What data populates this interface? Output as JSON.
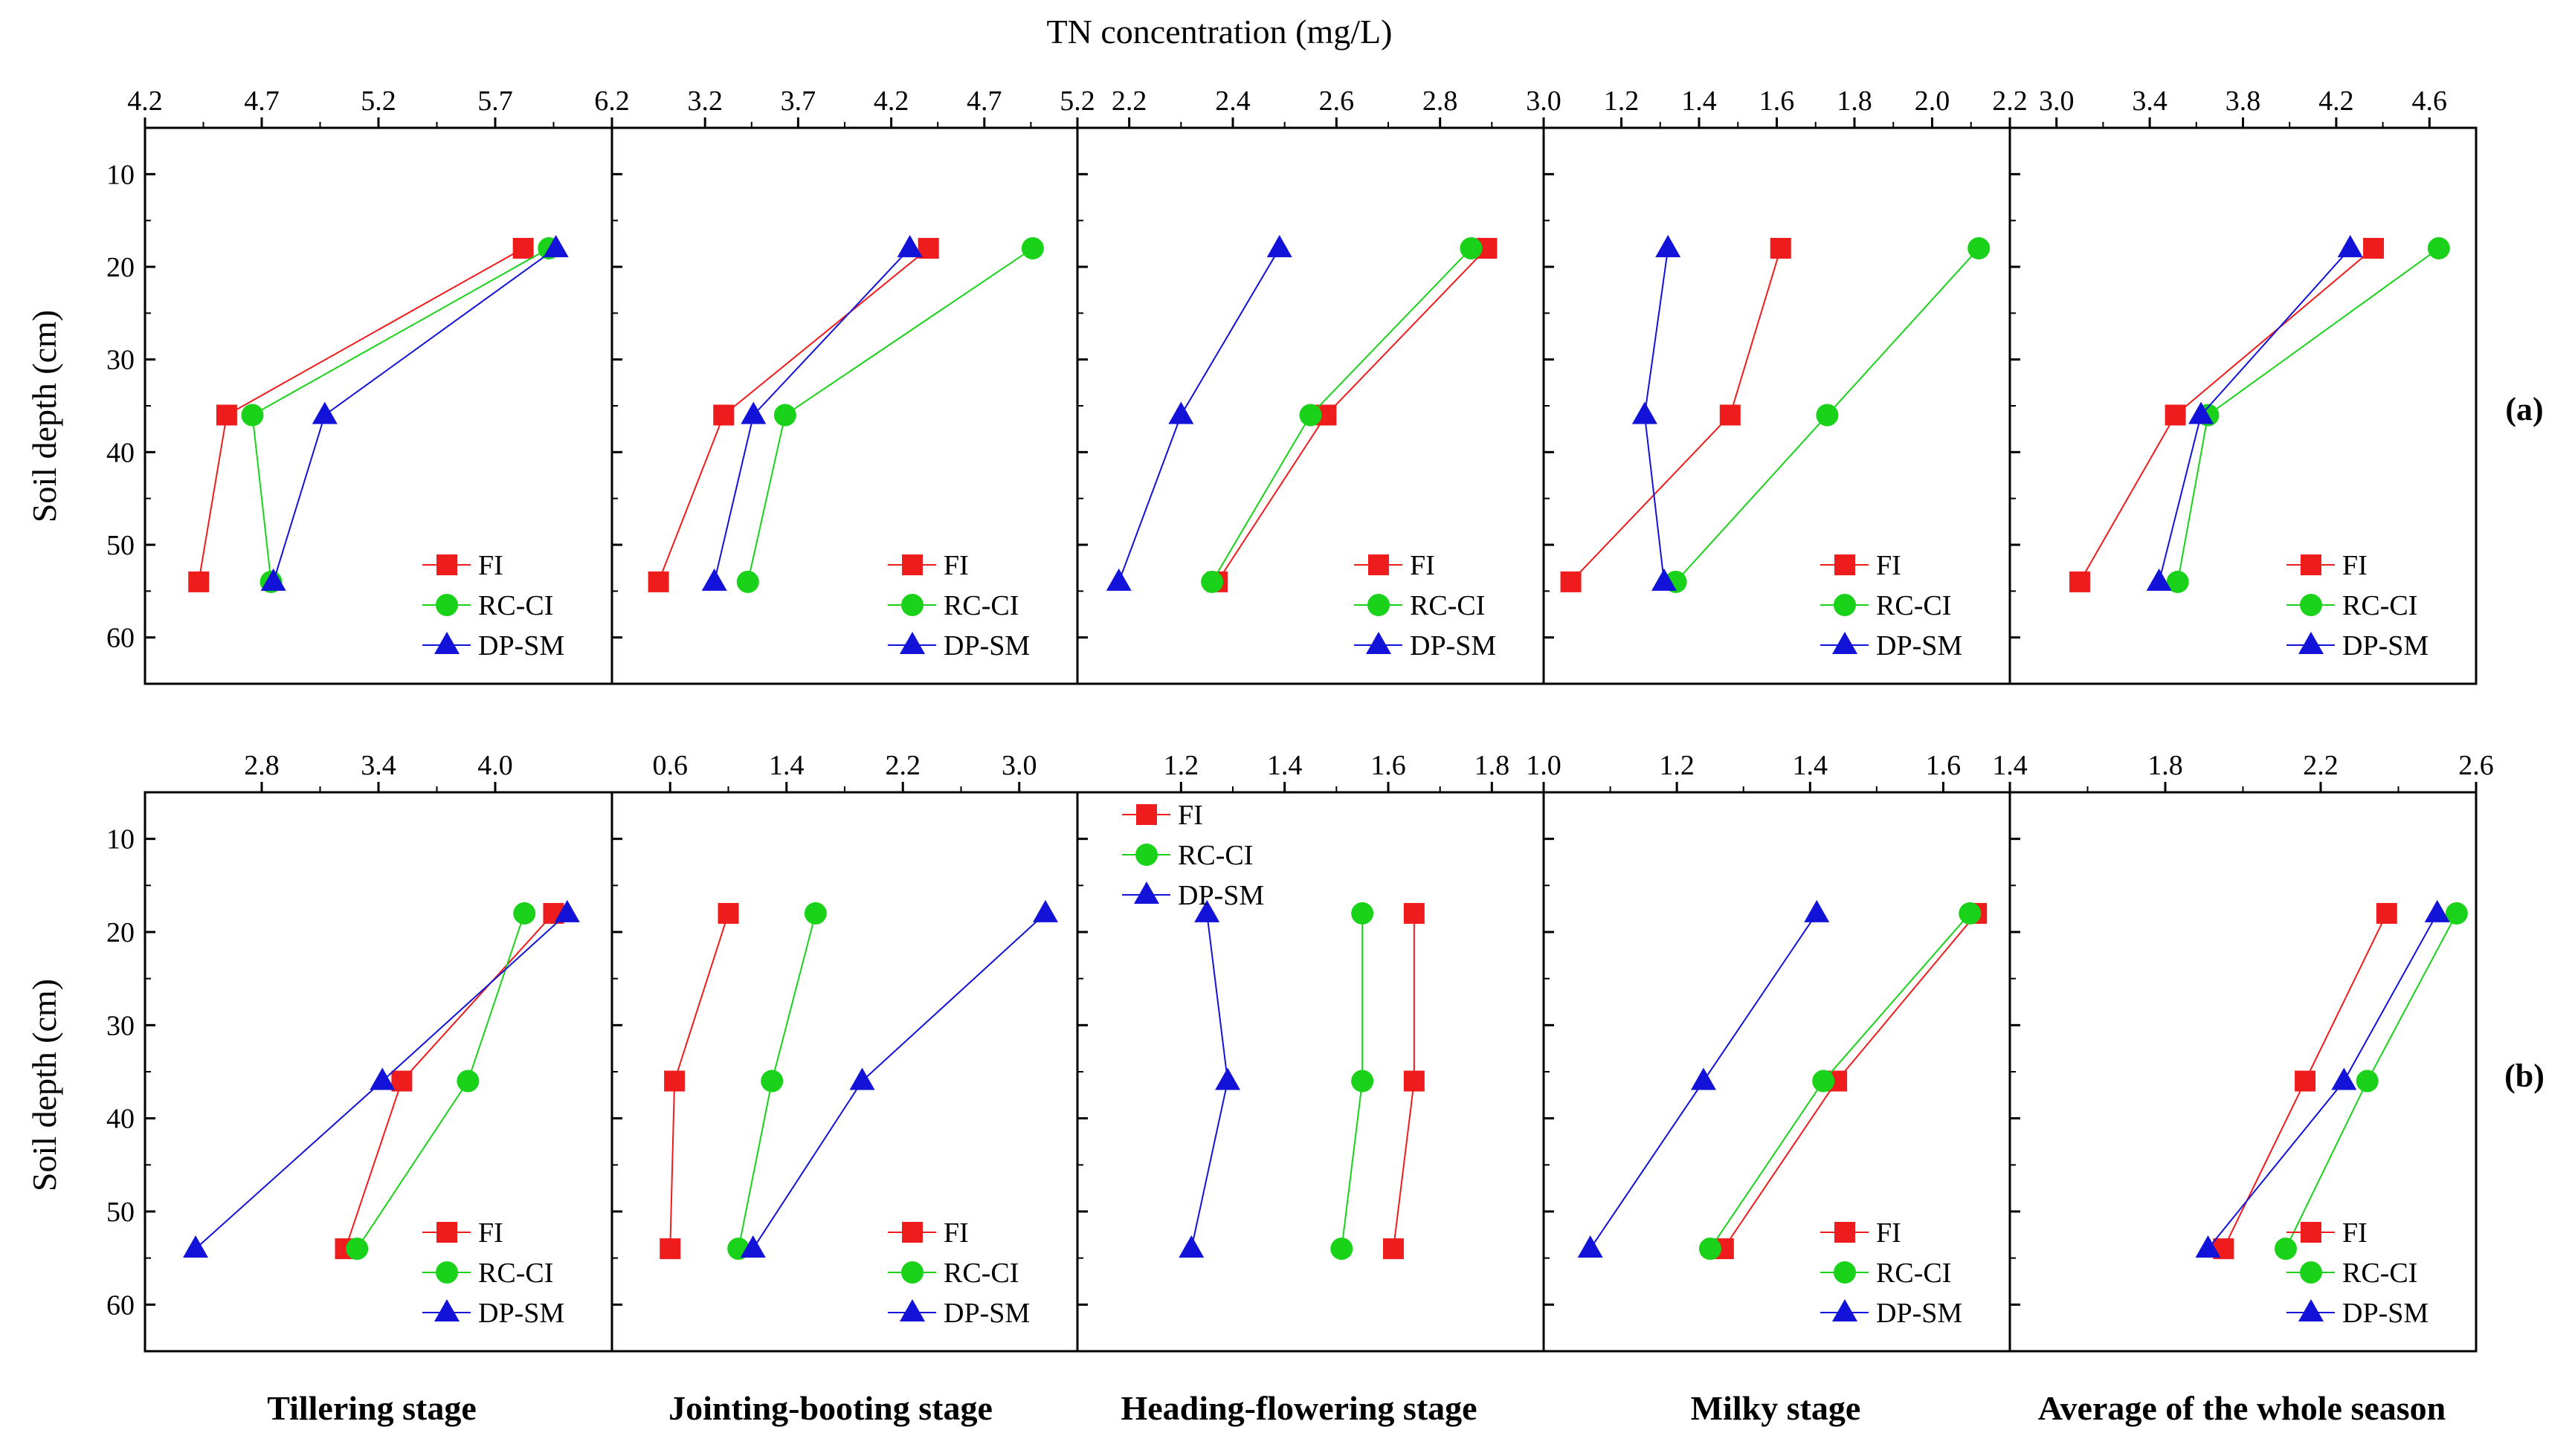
{
  "figure": {
    "top_xlabel": "TN concentration (mg/L)",
    "ylabel": "Soil depth (cm)",
    "row_labels": [
      "(a)",
      "(b)"
    ],
    "stage_labels": [
      "Tillering stage",
      "Jointing-booting stage",
      "Heading-flowering stage",
      "Milky stage",
      "Average of the whole season"
    ],
    "colors": {
      "FI": "#ee1c1c",
      "RC-CI": "#1ad21a",
      "DP-SM": "#1212d8"
    }
  },
  "chart_data": [
    {
      "type": "line",
      "row": "(a)",
      "panel": "Tillering stage",
      "xlim": [
        4.2,
        6.2
      ],
      "xticks": [
        "4.2",
        "4.7",
        "5.2",
        "5.7",
        "6.2"
      ],
      "ylim": [
        5,
        65
      ],
      "yticks": [
        "10",
        "20",
        "30",
        "40",
        "50",
        "60"
      ],
      "depths": [
        18,
        36,
        54
      ],
      "legend": "bottom-right",
      "series": [
        {
          "name": "FI",
          "marker": "square",
          "values": [
            5.82,
            4.55,
            4.43
          ]
        },
        {
          "name": "RC-CI",
          "marker": "circle",
          "values": [
            5.93,
            4.66,
            4.74
          ]
        },
        {
          "name": "DP-SM",
          "marker": "triangle",
          "values": [
            5.96,
            4.97,
            4.75
          ]
        }
      ]
    },
    {
      "type": "line",
      "row": "(a)",
      "panel": "Jointing-booting stage",
      "xlim": [
        2.7,
        5.2
      ],
      "xticks": [
        "3.2",
        "3.7",
        "4.2",
        "4.7",
        "5.2"
      ],
      "ylim": [
        5,
        65
      ],
      "yticks": [
        "10",
        "20",
        "30",
        "40",
        "50",
        "60"
      ],
      "depths": [
        18,
        36,
        54
      ],
      "legend": "bottom-right",
      "series": [
        {
          "name": "FI",
          "marker": "square",
          "values": [
            4.4,
            3.3,
            2.95
          ]
        },
        {
          "name": "RC-CI",
          "marker": "circle",
          "values": [
            4.96,
            3.63,
            3.43
          ]
        },
        {
          "name": "DP-SM",
          "marker": "triangle",
          "values": [
            4.3,
            3.46,
            3.25
          ]
        }
      ]
    },
    {
      "type": "line",
      "row": "(a)",
      "panel": "Heading-flowering stage",
      "xlim": [
        2.1,
        3.0
      ],
      "xticks": [
        "2.2",
        "2.4",
        "2.6",
        "2.8",
        "3.0"
      ],
      "ylim": [
        5,
        65
      ],
      "yticks": [
        "10",
        "20",
        "30",
        "40",
        "50",
        "60"
      ],
      "depths": [
        18,
        36,
        54
      ],
      "legend": "bottom-right",
      "series": [
        {
          "name": "FI",
          "marker": "square",
          "values": [
            2.89,
            2.58,
            2.37
          ]
        },
        {
          "name": "RC-CI",
          "marker": "circle",
          "values": [
            2.86,
            2.55,
            2.36
          ]
        },
        {
          "name": "DP-SM",
          "marker": "triangle",
          "values": [
            2.49,
            2.3,
            2.18
          ]
        }
      ]
    },
    {
      "type": "line",
      "row": "(a)",
      "panel": "Milky stage",
      "xlim": [
        1.0,
        2.2
      ],
      "xticks": [
        "1.2",
        "1.4",
        "1.6",
        "1.8",
        "2.0",
        "2.2"
      ],
      "ylim": [
        5,
        65
      ],
      "yticks": [
        "10",
        "20",
        "30",
        "40",
        "50",
        "60"
      ],
      "depths": [
        18,
        36,
        54
      ],
      "legend": "bottom-right",
      "series": [
        {
          "name": "FI",
          "marker": "square",
          "values": [
            1.61,
            1.48,
            1.07
          ]
        },
        {
          "name": "RC-CI",
          "marker": "circle",
          "values": [
            2.12,
            1.73,
            1.34
          ]
        },
        {
          "name": "DP-SM",
          "marker": "triangle",
          "values": [
            1.32,
            1.26,
            1.31
          ]
        }
      ]
    },
    {
      "type": "line",
      "row": "(a)",
      "panel": "Average of the whole season",
      "xlim": [
        2.8,
        4.8
      ],
      "xticks": [
        "3.0",
        "3.4",
        "3.8",
        "4.2",
        "4.6"
      ],
      "ylim": [
        5,
        65
      ],
      "yticks": [
        "10",
        "20",
        "30",
        "40",
        "50",
        "60"
      ],
      "depths": [
        18,
        36,
        54
      ],
      "legend": "bottom-right",
      "series": [
        {
          "name": "FI",
          "marker": "square",
          "values": [
            4.36,
            3.51,
            3.1
          ]
        },
        {
          "name": "RC-CI",
          "marker": "circle",
          "values": [
            4.64,
            3.65,
            3.52
          ]
        },
        {
          "name": "DP-SM",
          "marker": "triangle",
          "values": [
            4.26,
            3.62,
            3.44
          ]
        }
      ]
    },
    {
      "type": "line",
      "row": "(b)",
      "panel": "Tillering stage",
      "xlim": [
        2.2,
        4.6
      ],
      "xticks": [
        "2.8",
        "3.4",
        "4.0"
      ],
      "ylim": [
        5,
        65
      ],
      "yticks": [
        "10",
        "20",
        "30",
        "40",
        "50",
        "60"
      ],
      "depths": [
        18,
        36,
        54
      ],
      "legend": "bottom-right",
      "series": [
        {
          "name": "FI",
          "marker": "square",
          "values": [
            4.3,
            3.52,
            3.23
          ]
        },
        {
          "name": "RC-CI",
          "marker": "circle",
          "values": [
            4.15,
            3.86,
            3.29
          ]
        },
        {
          "name": "DP-SM",
          "marker": "triangle",
          "values": [
            4.37,
            3.42,
            2.46
          ]
        }
      ]
    },
    {
      "type": "line",
      "row": "(b)",
      "panel": "Jointing-booting stage",
      "xlim": [
        0.2,
        3.4
      ],
      "xticks": [
        "0.6",
        "1.4",
        "2.2",
        "3.0"
      ],
      "ylim": [
        5,
        65
      ],
      "yticks": [
        "10",
        "20",
        "30",
        "40",
        "50",
        "60"
      ],
      "depths": [
        18,
        36,
        54
      ],
      "legend": "bottom-right",
      "series": [
        {
          "name": "FI",
          "marker": "square",
          "values": [
            1.0,
            0.63,
            0.6
          ]
        },
        {
          "name": "RC-CI",
          "marker": "circle",
          "values": [
            1.6,
            1.3,
            1.07
          ]
        },
        {
          "name": "DP-SM",
          "marker": "triangle",
          "values": [
            3.18,
            1.92,
            1.17
          ]
        }
      ]
    },
    {
      "type": "line",
      "row": "(b)",
      "panel": "Heading-flowering stage",
      "xlim": [
        1.0,
        1.9
      ],
      "xticks": [
        "1.2",
        "1.4",
        "1.6",
        "1.8"
      ],
      "ylim": [
        5,
        65
      ],
      "yticks": [
        "10",
        "20",
        "30",
        "40",
        "50",
        "60"
      ],
      "depths": [
        18,
        36,
        54
      ],
      "legend": "top-left",
      "series": [
        {
          "name": "FI",
          "marker": "square",
          "values": [
            1.65,
            1.65,
            1.61
          ]
        },
        {
          "name": "RC-CI",
          "marker": "circle",
          "values": [
            1.55,
            1.55,
            1.51
          ]
        },
        {
          "name": "DP-SM",
          "marker": "triangle",
          "values": [
            1.25,
            1.29,
            1.22
          ]
        }
      ]
    },
    {
      "type": "line",
      "row": "(b)",
      "panel": "Milky stage",
      "xlim": [
        1.0,
        1.7
      ],
      "xticks": [
        "1.0",
        "1.2",
        "1.4",
        "1.6"
      ],
      "ylim": [
        5,
        65
      ],
      "yticks": [
        "10",
        "20",
        "30",
        "40",
        "50",
        "60"
      ],
      "depths": [
        18,
        36,
        54
      ],
      "legend": "bottom-right",
      "series": [
        {
          "name": "FI",
          "marker": "square",
          "values": [
            1.65,
            1.44,
            1.27
          ]
        },
        {
          "name": "RC-CI",
          "marker": "circle",
          "values": [
            1.64,
            1.42,
            1.25
          ]
        },
        {
          "name": "DP-SM",
          "marker": "triangle",
          "values": [
            1.41,
            1.24,
            1.07
          ]
        }
      ]
    },
    {
      "type": "line",
      "row": "(b)",
      "panel": "Average of the whole season",
      "xlim": [
        1.4,
        2.6
      ],
      "xticks": [
        "1.4",
        "1.8",
        "2.2",
        "2.6"
      ],
      "ylim": [
        5,
        65
      ],
      "yticks": [
        "10",
        "20",
        "30",
        "40",
        "50",
        "60"
      ],
      "depths": [
        18,
        36,
        54
      ],
      "legend": "bottom-right",
      "series": [
        {
          "name": "FI",
          "marker": "square",
          "values": [
            2.37,
            2.16,
            1.95
          ]
        },
        {
          "name": "RC-CI",
          "marker": "circle",
          "values": [
            2.55,
            2.32,
            2.11
          ]
        },
        {
          "name": "DP-SM",
          "marker": "triangle",
          "values": [
            2.5,
            2.26,
            1.91
          ]
        }
      ]
    }
  ]
}
